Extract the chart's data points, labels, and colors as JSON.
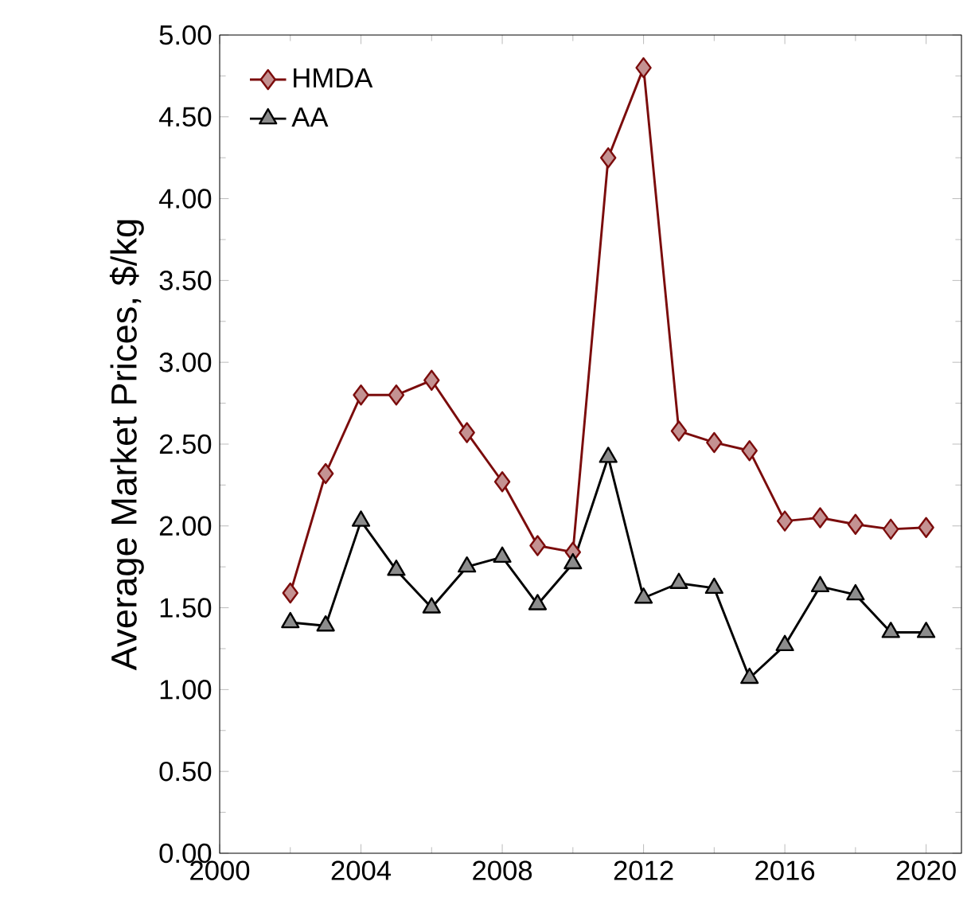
{
  "chart_data": {
    "type": "line",
    "ylabel": "Average Market Prices, $/kg",
    "x": [
      2002,
      2003,
      2004,
      2005,
      2006,
      2007,
      2008,
      2009,
      2010,
      2011,
      2012,
      2013,
      2014,
      2015,
      2016,
      2017,
      2018,
      2019,
      2020
    ],
    "series": [
      {
        "name": "HMDA",
        "color": "#7b0c0c",
        "marker": "diamond",
        "line_style": "solid",
        "values": [
          1.59,
          2.32,
          2.8,
          2.8,
          2.89,
          2.57,
          2.27,
          1.88,
          1.84,
          4.25,
          4.8,
          2.58,
          2.51,
          2.46,
          2.03,
          2.05,
          2.01,
          1.98,
          1.99
        ]
      },
      {
        "name": "AA",
        "color": "#000000",
        "marker": "triangle",
        "line_style": "solid",
        "values": [
          1.41,
          1.39,
          2.03,
          1.73,
          1.5,
          1.75,
          1.81,
          1.52,
          1.77,
          2.42,
          1.56,
          1.65,
          1.62,
          1.07,
          1.27,
          1.63,
          1.58,
          1.35,
          1.35
        ]
      }
    ],
    "xlim": [
      2000,
      2021
    ],
    "xticks": [
      2000,
      2004,
      2008,
      2012,
      2016,
      2020
    ],
    "ylim": [
      0,
      5
    ],
    "yticks": [
      {
        "value": 0,
        "label": "0.00"
      },
      {
        "value": 0.5,
        "label": "0.50"
      },
      {
        "value": 1,
        "label": "1.00"
      },
      {
        "value": 1.5,
        "label": "1.50"
      },
      {
        "value": 2,
        "label": "2.00"
      },
      {
        "value": 2.5,
        "label": "2.50"
      },
      {
        "value": 3,
        "label": "3.00"
      },
      {
        "value": 3.5,
        "label": "3.50"
      },
      {
        "value": 4,
        "label": "4.00"
      },
      {
        "value": 4.5,
        "label": "4.50"
      },
      {
        "value": 5,
        "label": "5.00"
      }
    ],
    "grid": false,
    "legend": "top left"
  }
}
